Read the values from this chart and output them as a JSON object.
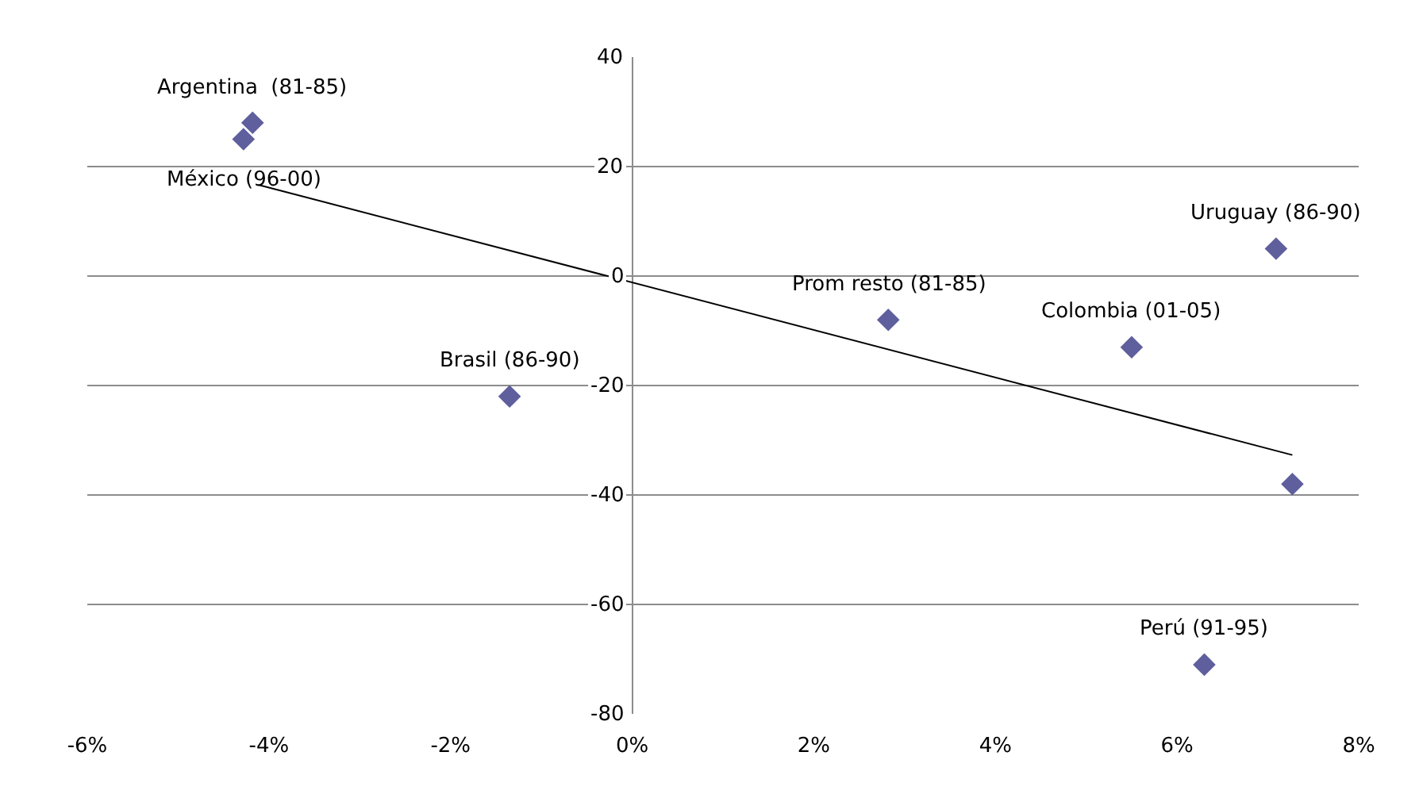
{
  "chart_data": {
    "type": "scatter",
    "series": [
      {
        "color": "#5f5f9e",
        "marker": "diamond",
        "x": [
          -4.18,
          -4.28,
          -1.35,
          2.82,
          5.5,
          7.09,
          7.27,
          6.3
        ],
        "values": [
          28,
          25,
          -22,
          -8,
          -13,
          5,
          -38,
          -71
        ]
      },
      {
        "type": "line",
        "color": "#000000",
        "marker": "none",
        "line_style": "solid",
        "x": [
          -4.1,
          7.27
        ],
        "values": [
          16.6,
          -32.7
        ]
      }
    ],
    "annotations": [
      {
        "text": "Argentina  (81-85)",
        "x": -4.18,
        "y": 28
      },
      {
        "text": "México (96-00)",
        "x": -4.28,
        "y": 25
      },
      {
        "text": "Brasil (86-90)",
        "x": -1.35,
        "y": -22
      },
      {
        "text": "Prom resto (81-85)",
        "x": 2.82,
        "y": -8
      },
      {
        "text": "Colombia (01-05)",
        "x": 5.5,
        "y": -13
      },
      {
        "text": "Uruguay (86-90)",
        "x": 7.09,
        "y": 5
      },
      {
        "text": "Perú (91-95)",
        "x": 6.3,
        "y": -71
      }
    ],
    "xlim": [
      -6,
      8
    ],
    "xticks": [
      {
        "value": -6,
        "label": "-6%"
      },
      {
        "value": -4,
        "label": "-4%"
      },
      {
        "value": -2,
        "label": "-2%"
      },
      {
        "value": 0,
        "label": "0%"
      },
      {
        "value": 2,
        "label": "2%"
      },
      {
        "value": 4,
        "label": "4%"
      },
      {
        "value": 6,
        "label": "6%"
      },
      {
        "value": 8,
        "label": "8%"
      }
    ],
    "ylim": [
      -80,
      40
    ],
    "yticks": [
      -80,
      -60,
      -40,
      -20,
      0,
      20,
      40
    ],
    "grid": "y"
  }
}
